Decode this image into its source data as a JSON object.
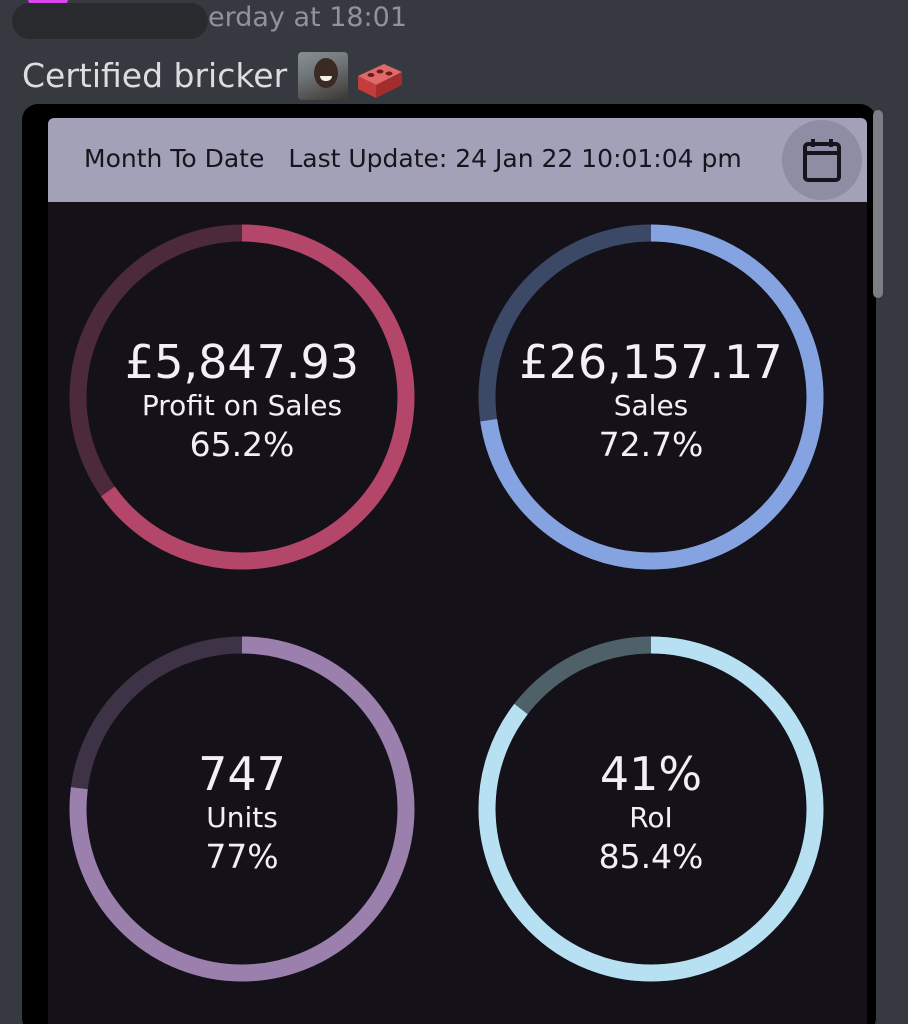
{
  "message": {
    "timestamp": "erday at 18:01",
    "text": "Certified bricker",
    "emojis": [
      "face-emoji",
      "brick-emoji"
    ]
  },
  "dashboard": {
    "header": {
      "period": "Month To Date",
      "last_update": "Last Update: 24 Jan 22 10:01:04 pm",
      "calendar_icon": "calendar-icon"
    },
    "kpis": [
      {
        "value": "£5,847.93",
        "label": "Profit on Sales",
        "percent_text": "65.2%",
        "fraction": 0.652,
        "color": "#b4466a",
        "track_color": "#4c2a3b"
      },
      {
        "value": "£26,157.17",
        "label": "Sales",
        "percent_text": "72.7%",
        "fraction": 0.727,
        "color": "#85a3e0",
        "track_color": "#3b4866"
      },
      {
        "value": "747",
        "label": "Units",
        "percent_text": "77%",
        "fraction": 0.77,
        "color": "#9b7fac",
        "track_color": "#3e3246"
      },
      {
        "value": "41%",
        "label": "RoI",
        "percent_text": "85.4%",
        "fraction": 0.854,
        "color": "#b7e1f3",
        "track_color": "#4e6169"
      }
    ]
  },
  "colors": {
    "chat_background": "#36393f",
    "panel_background": "#141218",
    "header_background": "#a3a1b8"
  }
}
